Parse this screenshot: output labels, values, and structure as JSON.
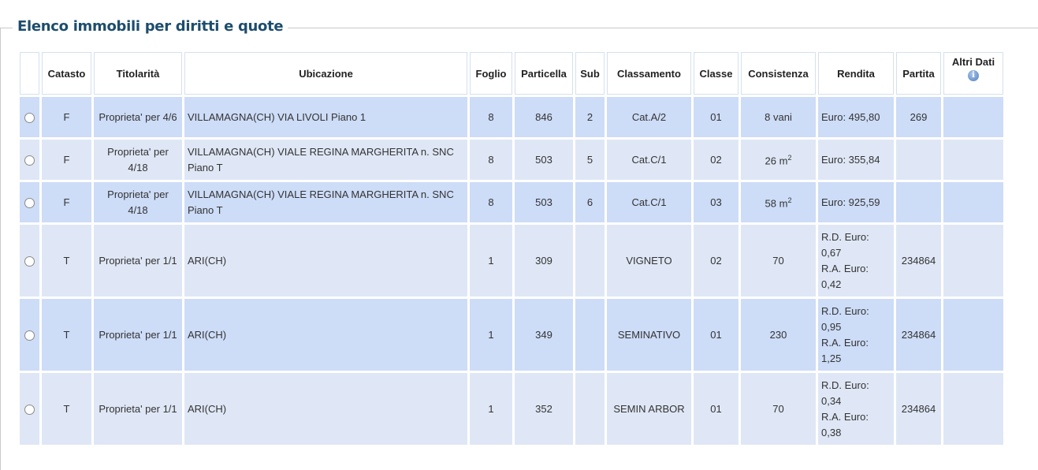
{
  "title": "Elenco immobili per diritti e quote",
  "headers": [
    "",
    "Catasto",
    "Titolarità",
    "Ubicazione",
    "Foglio",
    "Particella",
    "Sub",
    "Classamento",
    "Classe",
    "Consistenza",
    "Rendita",
    "Partita",
    "Altri Dati"
  ],
  "info_icon": "info-icon",
  "colors": {
    "row_dark": "#cddcf7",
    "row_light": "#dfe7f6",
    "title": "#1d4d6e"
  },
  "rows": [
    {
      "catasto": "F",
      "titolarita": "Proprieta' per 4/6",
      "ubicazione": "VILLAMAGNA(CH) VIA LIVOLI Piano 1",
      "foglio": "8",
      "particella": "846",
      "sub": "2",
      "classamento": "Cat.A/2",
      "classe": "01",
      "consistenza": "8 vani",
      "consistenza_sup": "",
      "rendita": [
        "Euro: 495,80"
      ],
      "partita": "269"
    },
    {
      "catasto": "F",
      "titolarita": "Proprieta' per 4/18",
      "ubicazione": "VILLAMAGNA(CH) VIALE REGINA MARGHERITA n. SNC Piano T",
      "foglio": "8",
      "particella": "503",
      "sub": "5",
      "classamento": "Cat.C/1",
      "classe": "02",
      "consistenza": "26 m",
      "consistenza_sup": "2",
      "rendita": [
        "Euro: 355,84"
      ],
      "partita": ""
    },
    {
      "catasto": "F",
      "titolarita": "Proprieta' per 4/18",
      "ubicazione": "VILLAMAGNA(CH) VIALE REGINA MARGHERITA n. SNC Piano T",
      "foglio": "8",
      "particella": "503",
      "sub": "6",
      "classamento": "Cat.C/1",
      "classe": "03",
      "consistenza": "58 m",
      "consistenza_sup": "2",
      "rendita": [
        "Euro: 925,59"
      ],
      "partita": ""
    },
    {
      "catasto": "T",
      "titolarita": "Proprieta' per 1/1",
      "ubicazione": "ARI(CH)",
      "foglio": "1",
      "particella": "309",
      "sub": "",
      "classamento": "VIGNETO",
      "classe": "02",
      "consistenza": "70",
      "consistenza_sup": "",
      "rendita": [
        "R.D. Euro: 0,67",
        "R.A. Euro: 0,42"
      ],
      "partita": "234864"
    },
    {
      "catasto": "T",
      "titolarita": "Proprieta' per 1/1",
      "ubicazione": "ARI(CH)",
      "foglio": "1",
      "particella": "349",
      "sub": "",
      "classamento": "SEMINATIVO",
      "classe": "01",
      "consistenza": "230",
      "consistenza_sup": "",
      "rendita": [
        "R.D. Euro: 0,95",
        "R.A. Euro: 1,25"
      ],
      "partita": "234864"
    },
    {
      "catasto": "T",
      "titolarita": "Proprieta' per 1/1",
      "ubicazione": "ARI(CH)",
      "foglio": "1",
      "particella": "352",
      "sub": "",
      "classamento": "SEMIN ARBOR",
      "classe": "01",
      "consistenza": "70",
      "consistenza_sup": "",
      "rendita": [
        "R.D. Euro: 0,34",
        "R.A. Euro: 0,38"
      ],
      "partita": "234864"
    }
  ]
}
